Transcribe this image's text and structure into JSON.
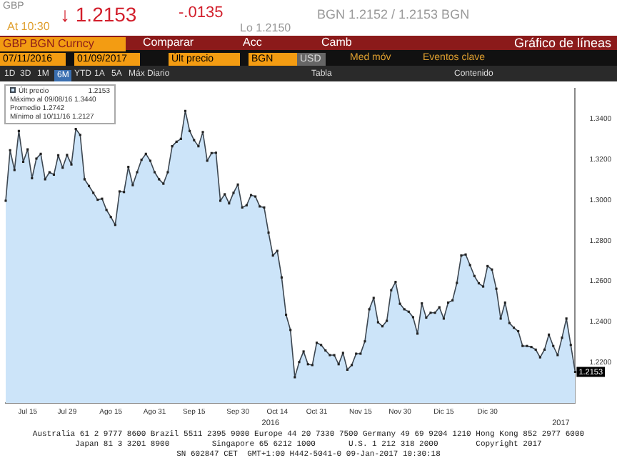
{
  "chart_data": {
    "type": "area",
    "title": "Gráfico de líneas",
    "categories": [
      null,
      null,
      null,
      null,
      null,
      "Jul 15",
      null,
      null,
      null,
      null,
      null,
      null,
      null,
      null,
      "Jul 29",
      null,
      null,
      null,
      null,
      null,
      null,
      null,
      null,
      null,
      "Ago 15",
      null,
      null,
      null,
      null,
      null,
      null,
      null,
      null,
      null,
      "Ago 31",
      null,
      null,
      null,
      null,
      null,
      null,
      null,
      null,
      "Sep 15",
      null,
      null,
      null,
      null,
      null,
      null,
      null,
      null,
      null,
      "Sep 30",
      null,
      null,
      null,
      null,
      null,
      null,
      null,
      null,
      "Oct 14",
      null,
      null,
      null,
      null,
      null,
      null,
      null,
      null,
      "Oct 31",
      null,
      null,
      null,
      null,
      null,
      null,
      null,
      null,
      null,
      "Nov 15",
      null,
      null,
      null,
      null,
      null,
      null,
      null,
      null,
      "Nov 30",
      null,
      null,
      null,
      null,
      null,
      null,
      null,
      null,
      null,
      "Dic 15",
      null,
      null,
      null,
      null,
      null,
      null,
      null,
      null,
      null,
      "Dic 30",
      null,
      null,
      null,
      null,
      null,
      null,
      null,
      null,
      null,
      null,
      null,
      null,
      null,
      null,
      null,
      null,
      null,
      null,
      null,
      null
    ],
    "series": [
      {
        "name": "Últ precio",
        "color": "#cce4f9",
        "values": [
          1.2997,
          1.3246,
          1.3149,
          1.3341,
          1.3189,
          1.325,
          1.3108,
          1.3205,
          1.3228,
          1.3103,
          1.3138,
          1.3126,
          1.3221,
          1.316,
          1.3223,
          1.3176,
          1.3351,
          1.3322,
          1.3103,
          1.307,
          1.3036,
          1.3002,
          1.3007,
          1.2952,
          1.2917,
          1.2878,
          1.3043,
          1.304,
          1.3164,
          1.3074,
          1.3138,
          1.3199,
          1.3228,
          1.3194,
          1.3138,
          1.3103,
          1.3081,
          1.3138,
          1.3266,
          1.3288,
          1.3302,
          1.344,
          1.3341,
          1.3296,
          1.3266,
          1.3336,
          1.3194,
          1.3232,
          1.3234,
          1.2997,
          1.3029,
          1.2984,
          1.3036,
          1.3077,
          1.2964,
          1.2975,
          1.3025,
          1.3018,
          1.2969,
          1.2964,
          1.284,
          1.2727,
          1.275,
          1.2619,
          1.2435,
          1.236,
          1.2127,
          1.2202,
          1.2254,
          1.2191,
          1.2187,
          1.2297,
          1.2286,
          1.2259,
          1.2236,
          1.2236,
          1.2191,
          1.2247,
          1.2164,
          1.2187,
          1.2243,
          1.2243,
          1.2304,
          1.2462,
          1.2518,
          1.2398,
          1.2378,
          1.2405,
          1.2556,
          1.2597,
          1.2489,
          1.2462,
          1.245,
          1.2423,
          1.2342,
          1.2491,
          1.2421,
          1.2445,
          1.2445,
          1.2472,
          1.2416,
          1.2495,
          1.2506,
          1.2592,
          1.2727,
          1.2732,
          1.268,
          1.2626,
          1.259,
          1.2574,
          1.2675,
          1.2658,
          1.2563,
          1.2416,
          1.2495,
          1.2394,
          1.2371,
          1.2354,
          1.2281,
          1.2281,
          1.2276,
          1.2263,
          1.2225,
          1.2263,
          1.2337,
          1.2281,
          1.2236,
          1.2322,
          1.2416,
          1.2286,
          1.2153
        ]
      }
    ],
    "ylim": [
      1.2,
      1.355
    ],
    "yticks": [
      {
        "value": 1.22,
        "label": "1.2200"
      },
      {
        "value": 1.24,
        "label": "1.2400"
      },
      {
        "value": 1.26,
        "label": "1.2600"
      },
      {
        "value": 1.28,
        "label": "1.2800"
      },
      {
        "value": 1.3,
        "label": "1.3000"
      },
      {
        "value": 1.32,
        "label": "1.3200"
      },
      {
        "value": 1.34,
        "label": "1.3400"
      }
    ],
    "grid": false,
    "legend": "top left",
    "marker": "square",
    "line_style": "solid",
    "annotations": [
      "GBP",
      "↓ 1.2153",
      "-.0135",
      "BGN 1.2152 / 1.2153 BGN",
      "At 10:30",
      "Lo 1.2150",
      "GBP BGN Curncy",
      "Comparar",
      "Acc",
      "Camb",
      "07/11/2016",
      "01/09/2017",
      "Últ precio",
      "BGN",
      "USD",
      "Med móv",
      "Eventos clave",
      "1D",
      "3D",
      "1M",
      "6M",
      "YTD",
      "1A",
      "5A",
      "Máx",
      "Diario",
      "Tabla",
      "Contenido",
      "Máximo al 09/08/16 1.3440",
      "Promedio 1.2742",
      "Mínimo al 10/11/16 1.2127",
      "2016",
      "2017",
      "Australia 61 2 9777 8600 Brazil 5511 2395 9000 Europe 44 20 7330 7500 Germany 49 69 9204 1210 Hong Kong 852 2977 6000",
      "Japan 81 3 3201 8900         Singapore 65 6212 1000       U.S. 1 212 318 2000        Copyright 2017",
      "SN 602847 CET  GMT+1:00 H442-5041-0 09-Jan-2017 10:30:18",
      {
        "text": "1.2153",
        "y": 1.2153
      }
    ]
  }
}
